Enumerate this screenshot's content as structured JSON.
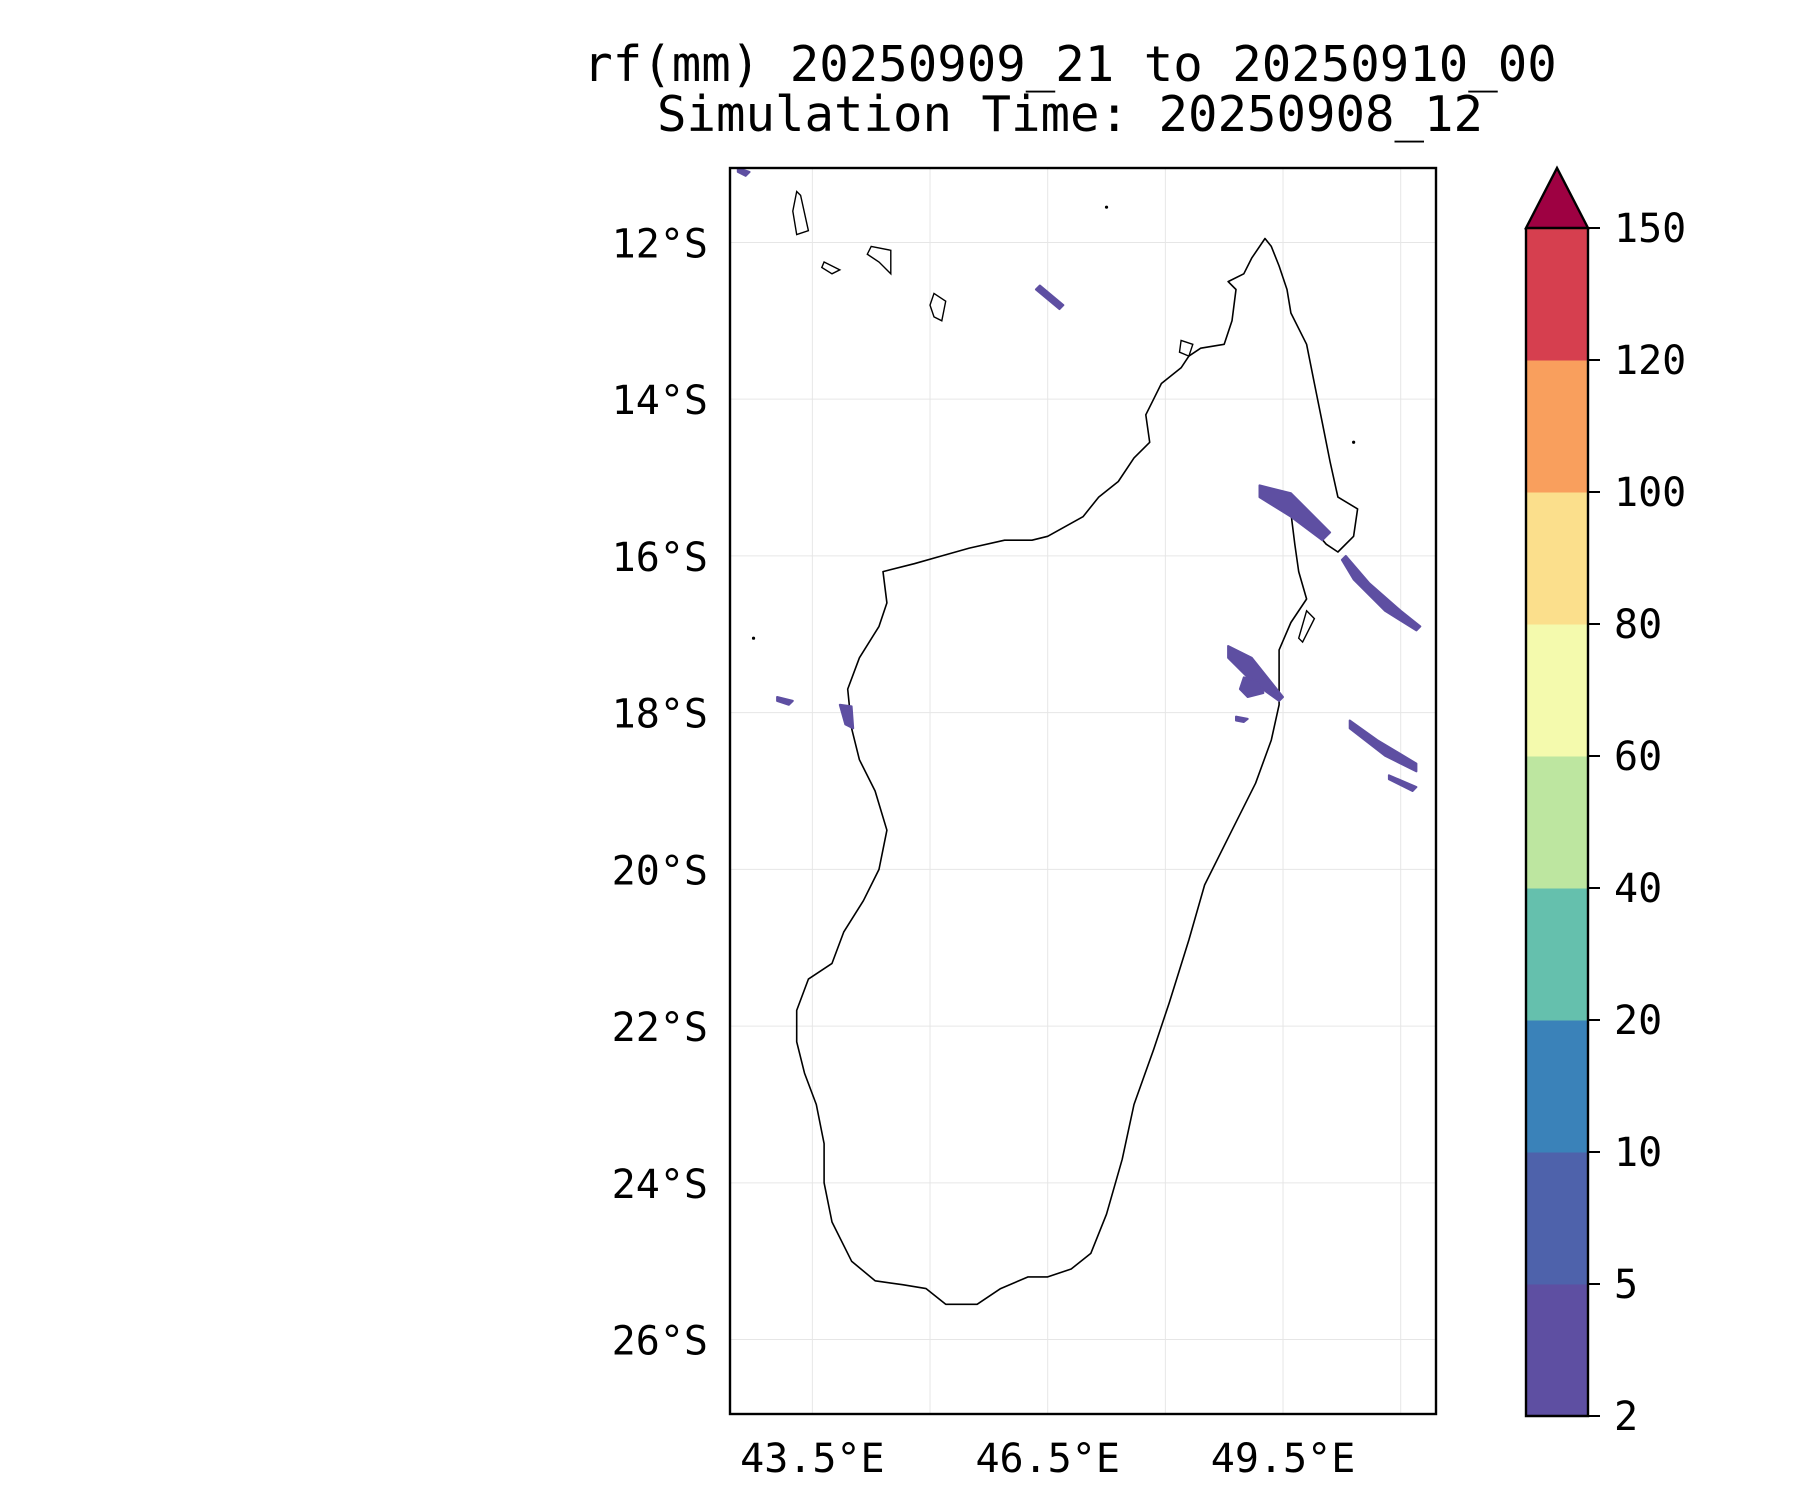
{
  "title": {
    "line1": "rf(mm) 20250909_21 to 20250910_00",
    "line2": "Simulation Time: 20250908_12"
  },
  "map": {
    "region": "Madagascar",
    "projection": "PlateCarree",
    "lon_range": [
      42.45,
      51.45
    ],
    "lat_range": [
      -26.95,
      -11.05
    ],
    "gridlines": true,
    "coastline_color": "#000000",
    "lat_ticks": [
      {
        "value": -12,
        "label": "12°S"
      },
      {
        "value": -14,
        "label": "14°S"
      },
      {
        "value": -16,
        "label": "16°S"
      },
      {
        "value": -18,
        "label": "18°S"
      },
      {
        "value": -20,
        "label": "20°S"
      },
      {
        "value": -22,
        "label": "22°S"
      },
      {
        "value": -24,
        "label": "24°S"
      },
      {
        "value": -26,
        "label": "26°S"
      }
    ],
    "lon_ticks": [
      {
        "value": 43.5,
        "label": "43.5°E"
      },
      {
        "value": 46.5,
        "label": "46.5°E"
      },
      {
        "value": 49.5,
        "label": "49.5°E"
      }
    ],
    "lon_grid_lines": [
      43.5,
      45.0,
      46.5,
      48.0,
      49.5,
      51.0
    ],
    "rain_color": "#5e4fa2",
    "rain_areas": [
      {
        "name": "rain-band-ne-coast",
        "points": [
          [
            49.2,
            -15.1
          ],
          [
            49.6,
            -15.2
          ],
          [
            50.1,
            -15.7
          ],
          [
            50.0,
            -15.8
          ],
          [
            49.6,
            -15.5
          ],
          [
            49.2,
            -15.25
          ]
        ]
      },
      {
        "name": "rain-band-offshore-1",
        "points": [
          [
            50.3,
            -16.0
          ],
          [
            50.6,
            -16.35
          ],
          [
            51.0,
            -16.7
          ],
          [
            51.25,
            -16.9
          ],
          [
            51.2,
            -16.95
          ],
          [
            50.8,
            -16.7
          ],
          [
            50.4,
            -16.3
          ],
          [
            50.25,
            -16.05
          ]
        ]
      },
      {
        "name": "rain-band-east-1",
        "points": [
          [
            48.8,
            -17.15
          ],
          [
            49.1,
            -17.3
          ],
          [
            49.5,
            -17.8
          ],
          [
            49.45,
            -17.85
          ],
          [
            49.1,
            -17.6
          ],
          [
            48.8,
            -17.3
          ]
        ]
      },
      {
        "name": "rain-blob-east",
        "points": [
          [
            49.0,
            -17.55
          ],
          [
            49.2,
            -17.6
          ],
          [
            49.25,
            -17.75
          ],
          [
            49.05,
            -17.8
          ],
          [
            48.95,
            -17.7
          ]
        ]
      },
      {
        "name": "rain-band-offshore-2",
        "points": [
          [
            50.35,
            -18.1
          ],
          [
            50.7,
            -18.35
          ],
          [
            51.2,
            -18.65
          ],
          [
            51.2,
            -18.75
          ],
          [
            50.8,
            -18.55
          ],
          [
            50.35,
            -18.2
          ]
        ]
      },
      {
        "name": "rain-band-offshore-3",
        "points": [
          [
            50.85,
            -18.8
          ],
          [
            51.2,
            -18.95
          ],
          [
            51.15,
            -19.0
          ],
          [
            50.85,
            -18.85
          ]
        ]
      },
      {
        "name": "rain-streak-north",
        "points": [
          [
            46.4,
            -12.55
          ],
          [
            46.7,
            -12.8
          ],
          [
            46.65,
            -12.85
          ],
          [
            46.35,
            -12.6
          ]
        ]
      },
      {
        "name": "rain-patch-west-coast",
        "points": [
          [
            43.85,
            -17.9
          ],
          [
            44.0,
            -17.92
          ],
          [
            44.02,
            -18.2
          ],
          [
            43.92,
            -18.15
          ]
        ]
      },
      {
        "name": "rain-fleck-west-1",
        "points": [
          [
            43.05,
            -17.8
          ],
          [
            43.25,
            -17.85
          ],
          [
            43.2,
            -17.9
          ],
          [
            43.05,
            -17.85
          ]
        ]
      },
      {
        "name": "rain-fleck-east-small",
        "points": [
          [
            48.9,
            -18.05
          ],
          [
            49.05,
            -18.08
          ],
          [
            49.0,
            -18.12
          ],
          [
            48.9,
            -18.1
          ]
        ]
      },
      {
        "name": "rain-fleck-nw-corner",
        "points": [
          [
            42.55,
            -11.05
          ],
          [
            42.7,
            -11.1
          ],
          [
            42.65,
            -11.15
          ],
          [
            42.55,
            -11.1
          ]
        ]
      }
    ]
  },
  "colorbar": {
    "levels": [
      2,
      5,
      10,
      20,
      40,
      60,
      80,
      100,
      120,
      150
    ],
    "tick_labels": [
      "2",
      "5",
      "10",
      "20",
      "40",
      "60",
      "80",
      "100",
      "120",
      "150"
    ],
    "colors": [
      "#5e4fa2",
      "#4e62ab",
      "#3a82b9",
      "#65c0ad",
      "#bde6a0",
      "#f4faad",
      "#fbdf8c",
      "#f99f5d",
      "#d63f4f"
    ],
    "extend_color": "#9e0142",
    "extend": "max"
  }
}
